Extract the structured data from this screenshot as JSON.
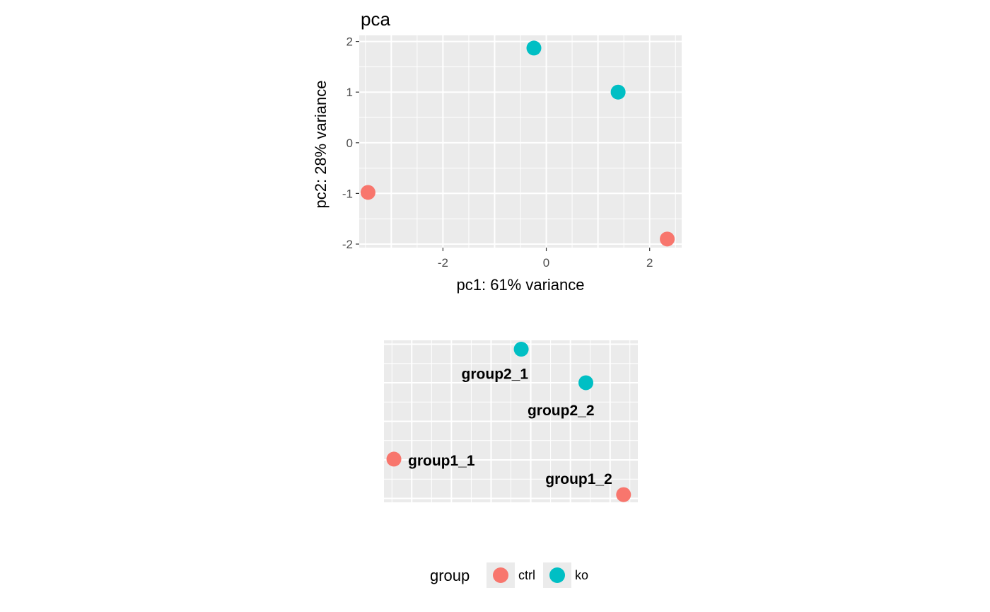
{
  "chart_data": [
    {
      "type": "scatter",
      "title": "pca",
      "xlabel": "pc1: 61% variance",
      "ylabel": "pc2: 28% variance",
      "xlim": [
        -3.62,
        2.62
      ],
      "ylim": [
        -2.07,
        2.12
      ],
      "xticks": [
        -2,
        0,
        2
      ],
      "xtick_labels": [
        "-2",
        "0",
        "2"
      ],
      "yticks": [
        -2,
        -1,
        0,
        1,
        2
      ],
      "ytick_labels": [
        "-2",
        "-1",
        "0",
        "1",
        "2"
      ],
      "grid": true,
      "series": [
        {
          "name": "ctrl",
          "color": "#F8766D",
          "points": [
            {
              "x": -3.45,
              "y": -0.98
            },
            {
              "x": 2.34,
              "y": -1.9
            }
          ]
        },
        {
          "name": "ko",
          "color": "#00BFC4",
          "points": [
            {
              "x": -0.24,
              "y": 1.87
            },
            {
              "x": 1.39,
              "y": 1.0
            }
          ]
        }
      ]
    },
    {
      "type": "scatter",
      "title": "",
      "xlabel": "",
      "ylabel": "",
      "xlim": [
        -3.7,
        2.7
      ],
      "ylim": [
        -2.1,
        2.1
      ],
      "grid": true,
      "series": [
        {
          "name": "ctrl",
          "color": "#F8766D",
          "points": [
            {
              "x": -3.45,
              "y": -0.98,
              "label": "group1_1"
            },
            {
              "x": 2.34,
              "y": -1.9,
              "label": "group1_2"
            }
          ]
        },
        {
          "name": "ko",
          "color": "#00BFC4",
          "points": [
            {
              "x": -0.24,
              "y": 1.87,
              "label": "group2_1"
            },
            {
              "x": 1.39,
              "y": 1.0,
              "label": "group2_2"
            }
          ]
        }
      ]
    }
  ],
  "legend": {
    "title": "group",
    "placement": "bottom",
    "items": [
      {
        "label": "ctrl",
        "color": "#F8766D"
      },
      {
        "label": "ko",
        "color": "#00BFC4"
      }
    ]
  }
}
